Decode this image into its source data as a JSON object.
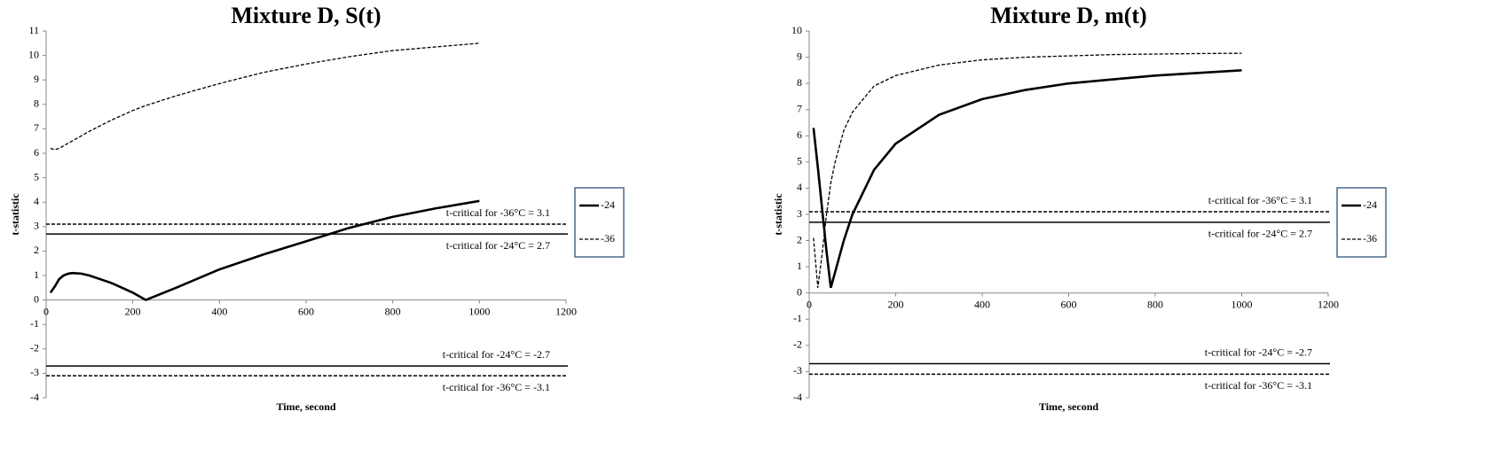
{
  "chart_data": [
    {
      "type": "line",
      "title": "Mixture D, S(t)",
      "x_label": "Time, second",
      "y_label": "t-statistic",
      "xlim": [
        0,
        1200
      ],
      "xticks": [
        0,
        200,
        400,
        600,
        800,
        1000,
        1200
      ],
      "ylim": [
        -4,
        11
      ],
      "yticks": [
        -4,
        -3,
        -2,
        -1,
        0,
        1,
        2,
        3,
        4,
        5,
        6,
        7,
        8,
        9,
        10,
        11
      ],
      "x": [
        10,
        20,
        30,
        40,
        50,
        60,
        80,
        100,
        150,
        200,
        230,
        300,
        400,
        500,
        600,
        700,
        800,
        900,
        1000
      ],
      "series": [
        {
          "name": "-24",
          "color": "#000000",
          "dashed": false,
          "values": [
            0.3,
            0.55,
            0.85,
            1.0,
            1.07,
            1.1,
            1.08,
            1.0,
            0.7,
            0.3,
            0.0,
            0.5,
            1.25,
            1.85,
            2.4,
            2.95,
            3.4,
            3.75,
            4.05
          ]
        },
        {
          "name": "-36",
          "color": "#000000",
          "dashed": true,
          "values": [
            6.2,
            6.15,
            6.2,
            6.3,
            6.4,
            6.5,
            6.7,
            6.9,
            7.35,
            7.75,
            7.95,
            8.35,
            8.85,
            9.3,
            9.65,
            9.95,
            10.2,
            10.35,
            10.5
          ]
        }
      ],
      "reference_lines": [
        {
          "value": 3.1,
          "label": "t-critical for -36°C = 3.1",
          "dashed": true,
          "label_position": "above"
        },
        {
          "value": 2.7,
          "label": "t-critical for -24°C = 2.7",
          "dashed": false,
          "label_position": "below"
        },
        {
          "value": -2.7,
          "label": "t-critical for -24°C = -2.7",
          "dashed": false,
          "label_position": "above"
        },
        {
          "value": -3.1,
          "label": "t-critical for -36°C = -3.1",
          "dashed": true,
          "label_position": "below"
        }
      ],
      "legend": "right"
    },
    {
      "type": "line",
      "title": "Mixture D, m(t)",
      "x_label": "Time, second",
      "y_label": "t-statistic",
      "xlim": [
        0,
        1200
      ],
      "xticks": [
        0,
        200,
        400,
        600,
        800,
        1000,
        1200
      ],
      "ylim": [
        -4,
        10
      ],
      "yticks": [
        -4,
        -3,
        -2,
        -1,
        0,
        1,
        2,
        3,
        4,
        5,
        6,
        7,
        8,
        9,
        10
      ],
      "x": [
        10,
        20,
        30,
        40,
        50,
        60,
        80,
        100,
        150,
        200,
        300,
        400,
        500,
        600,
        700,
        800,
        900,
        1000
      ],
      "series": [
        {
          "name": "-24",
          "color": "#000000",
          "dashed": false,
          "values": [
            6.3,
            4.8,
            3.2,
            1.6,
            0.2,
            0.8,
            2.0,
            3.0,
            4.7,
            5.7,
            6.8,
            7.4,
            7.75,
            8.0,
            8.15,
            8.3,
            8.4,
            8.5
          ]
        },
        {
          "name": "-36",
          "color": "#000000",
          "dashed": true,
          "values": [
            2.1,
            0.2,
            1.5,
            3.0,
            4.2,
            5.0,
            6.2,
            6.9,
            7.9,
            8.3,
            8.7,
            8.9,
            9.0,
            9.05,
            9.1,
            9.12,
            9.14,
            9.15
          ]
        }
      ],
      "reference_lines": [
        {
          "value": 3.1,
          "label": "t-critical for -36°C = 3.1",
          "dashed": true,
          "label_position": "above"
        },
        {
          "value": 2.7,
          "label": "t-critical for -24°C = 2.7",
          "dashed": false,
          "label_position": "below"
        },
        {
          "value": -2.7,
          "label": "t-critical for -24°C = -2.7",
          "dashed": false,
          "label_position": "above"
        },
        {
          "value": -3.1,
          "label": "t-critical for -36°C = -3.1",
          "dashed": true,
          "label_position": "below"
        }
      ],
      "legend": "right"
    }
  ]
}
